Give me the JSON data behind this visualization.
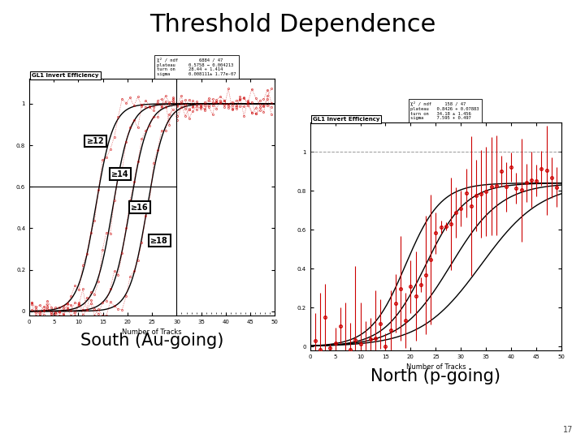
{
  "title": "Threshold Dependence",
  "title_fontsize": 22,
  "south_label": "South (Au-going)",
  "north_label": "North (p-going)",
  "threshold_labels": [
    "≥12",
    "≥14",
    "≥16",
    "≥18"
  ],
  "south_turn_on": [
    13.5,
    17.0,
    20.5,
    24.0
  ],
  "south_sigma": [
    1.8,
    1.8,
    1.8,
    1.8
  ],
  "south_plateau": [
    1.0,
    1.0,
    1.0,
    1.0
  ],
  "north_turn_on": [
    19.0,
    23.0,
    28.0,
    34.0
  ],
  "north_sigma": [
    3.5,
    4.0,
    5.0,
    6.0
  ],
  "north_plateau": [
    0.84,
    0.84,
    0.84,
    0.84
  ],
  "background_color": "#ffffff",
  "curve_color": "#000000",
  "data_color": "#cc0000",
  "page_number": "17"
}
